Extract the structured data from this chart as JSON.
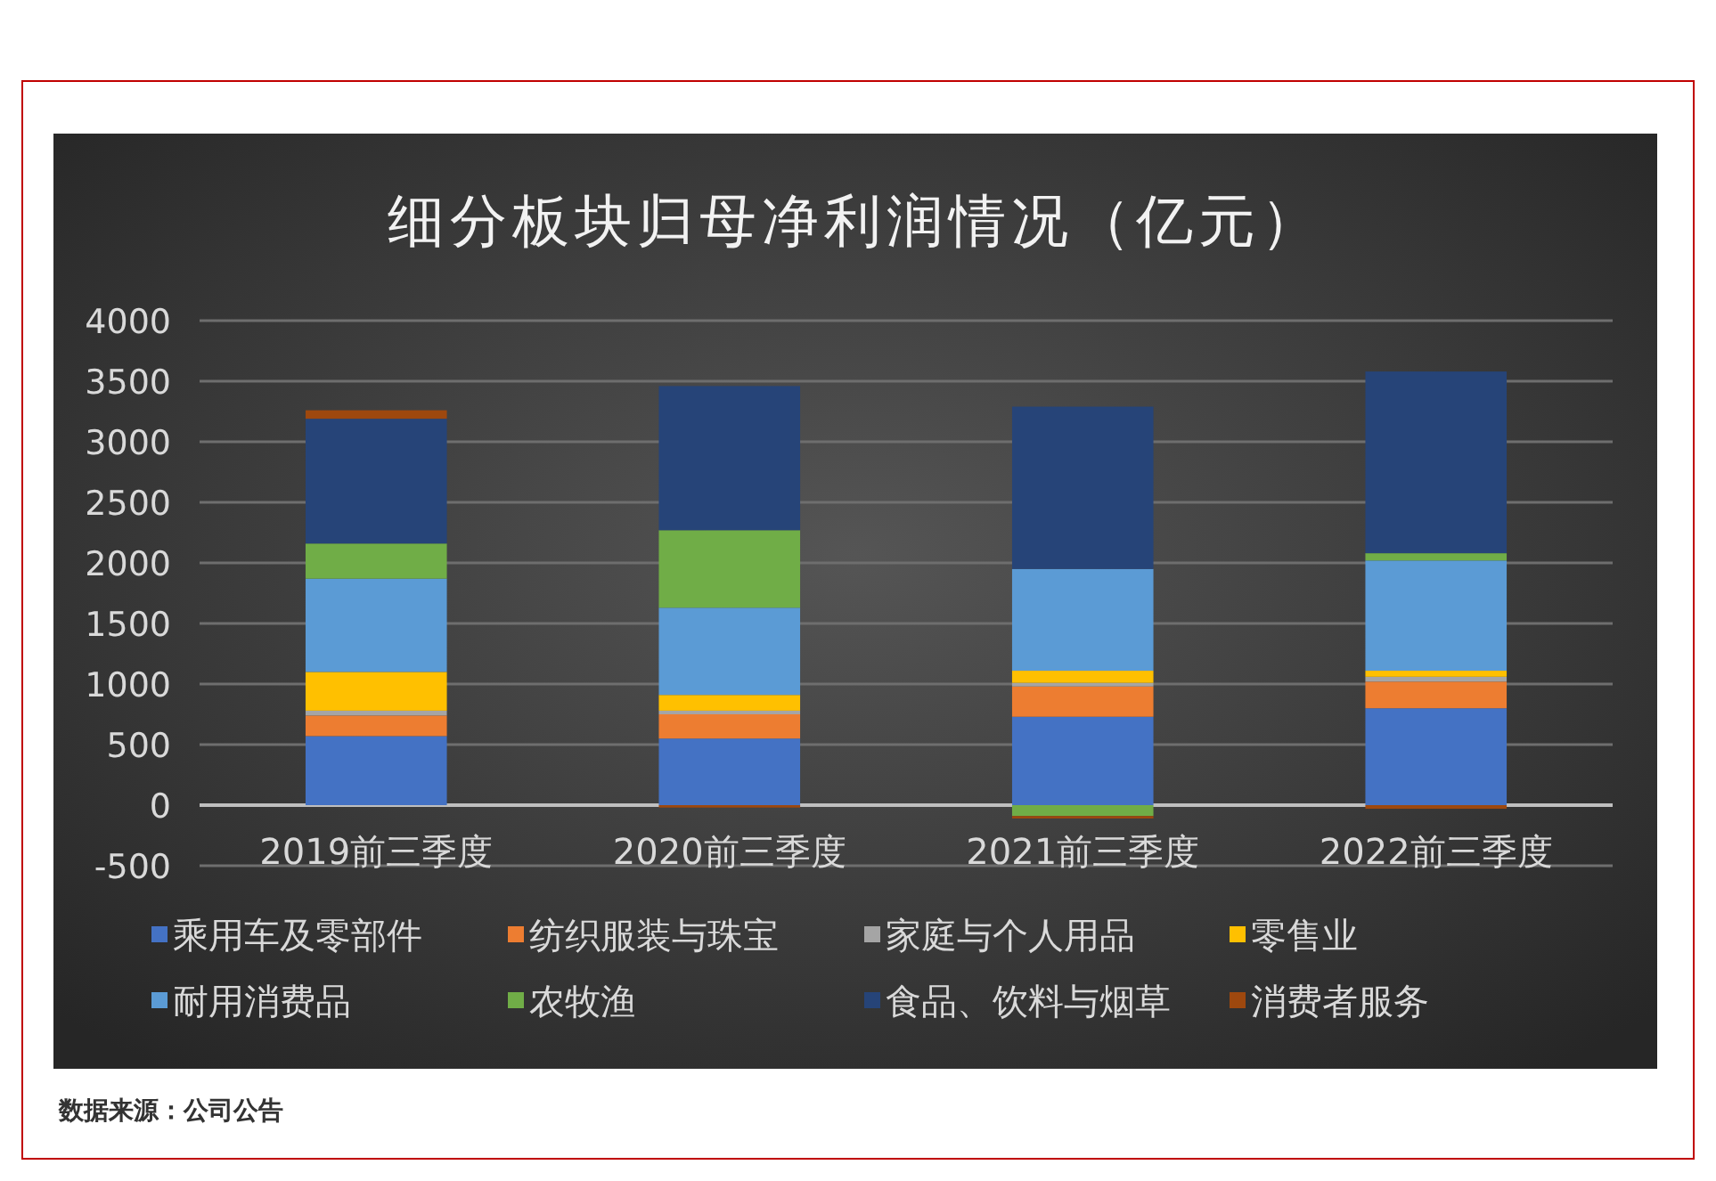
{
  "chart_data": {
    "type": "bar",
    "title": "细分板块归母净利润情况（亿元）",
    "stacked": true,
    "grid": "y",
    "legend": "bottom",
    "categories": [
      "2019前三季度",
      "2020前三季度",
      "2021前三季度",
      "2022前三季度"
    ],
    "series": [
      {
        "name": "乘用车及零部件",
        "color": "#4472c4",
        "values": [
          570,
          550,
          730,
          800
        ]
      },
      {
        "name": "纺织服装与珠宝",
        "color": "#ed7d31",
        "values": [
          170,
          200,
          250,
          220
        ]
      },
      {
        "name": "家庭与个人用品",
        "color": "#a5a5a5",
        "values": [
          40,
          30,
          30,
          40
        ]
      },
      {
        "name": "零售业",
        "color": "#ffc000",
        "values": [
          320,
          130,
          100,
          50
        ]
      },
      {
        "name": "耐用消费品",
        "color": "#5b9bd5",
        "values": [
          770,
          720,
          840,
          910
        ]
      },
      {
        "name": "农牧渔",
        "color": "#70ad47",
        "values": [
          290,
          640,
          -90,
          60
        ]
      },
      {
        "name": "食品、饮料与烟草",
        "color": "#264478",
        "values": [
          1030,
          1190,
          1340,
          1500
        ]
      },
      {
        "name": "消费者服务",
        "color": "#9e480e",
        "values": [
          70,
          -20,
          -20,
          -30
        ]
      }
    ],
    "ylim": [
      -500,
      4000
    ],
    "yticks": [
      -500,
      0,
      500,
      1000,
      1500,
      2000,
      2500,
      3000,
      3500,
      4000
    ],
    "annotations": [
      "数据来源：公司公告"
    ]
  }
}
